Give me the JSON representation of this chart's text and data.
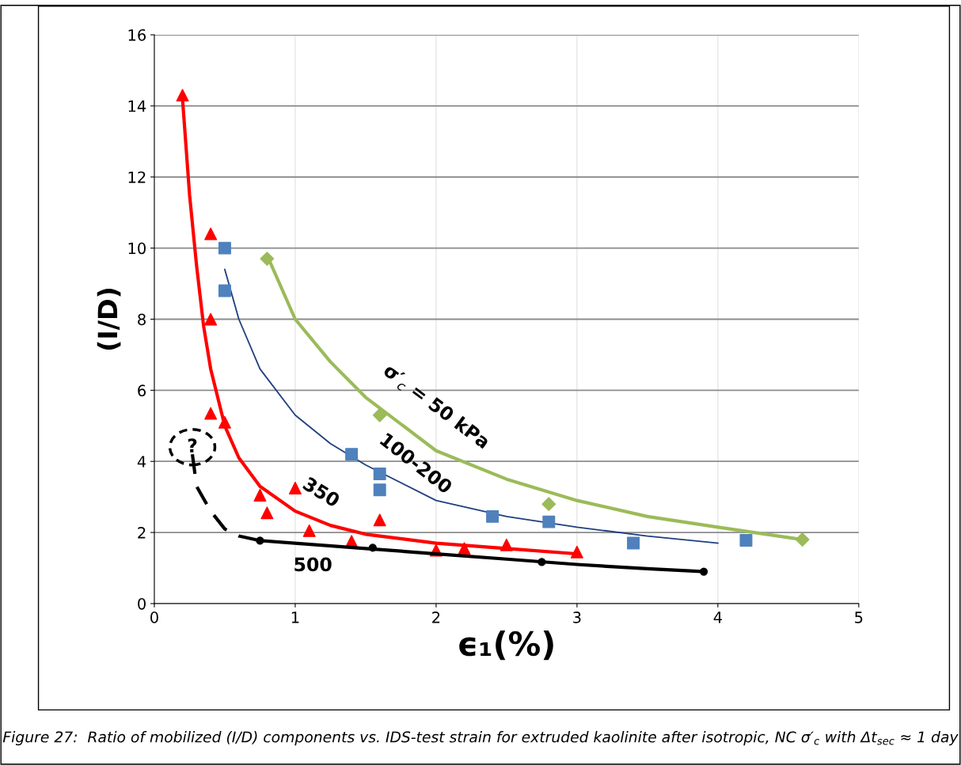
{
  "chart_data": {
    "type": "scatter",
    "xlabel": "ϵ₁(%)",
    "ylabel": "(I/D)",
    "xlim": [
      0,
      5
    ],
    "ylim": [
      0,
      16
    ],
    "xticks": [
      0,
      1,
      2,
      3,
      4,
      5
    ],
    "yticks": [
      0,
      2,
      4,
      6,
      8,
      10,
      12,
      14,
      16
    ],
    "grid": true,
    "legend": false,
    "series": [
      {
        "type": "line",
        "color": "#ff0000",
        "marker": "none",
        "line_style": "solid",
        "x": [
          0.2,
          0.25,
          0.3,
          0.35,
          0.4,
          0.5,
          0.6,
          0.75,
          1.0,
          1.25,
          1.5,
          2.0,
          2.5,
          3.0
        ],
        "values": [
          14.2,
          11.5,
          9.5,
          7.8,
          6.6,
          5.0,
          4.1,
          3.3,
          2.6,
          2.2,
          1.95,
          1.7,
          1.55,
          1.4
        ]
      },
      {
        "type": "line",
        "color": "#1f3f7f",
        "marker": "none",
        "line_style": "solid",
        "x": [
          0.5,
          0.6,
          0.75,
          1.0,
          1.25,
          1.5,
          2.0,
          2.5,
          3.0,
          3.5,
          4.0
        ],
        "values": [
          9.4,
          8.0,
          6.6,
          5.3,
          4.5,
          3.9,
          2.9,
          2.45,
          2.15,
          1.9,
          1.7
        ]
      },
      {
        "type": "line",
        "color": "#9bbb59",
        "marker": "none",
        "line_style": "solid",
        "x": [
          0.8,
          1.0,
          1.25,
          1.5,
          2.0,
          2.5,
          3.0,
          3.5,
          4.0,
          4.6
        ],
        "values": [
          9.8,
          8.0,
          6.8,
          5.8,
          4.3,
          3.5,
          2.9,
          2.45,
          2.15,
          1.8
        ]
      },
      {
        "type": "line",
        "color": "#000000",
        "marker": "none",
        "line_style": "solid",
        "x": [
          0.75,
          1.5,
          2.0,
          2.5,
          3.0,
          3.5,
          3.9
        ],
        "values": [
          1.77,
          1.55,
          1.4,
          1.25,
          1.1,
          0.98,
          0.9
        ]
      },
      {
        "type": "line",
        "color": "#000000",
        "marker": "none",
        "line_style": "dashed",
        "x": [
          0.27,
          0.3,
          0.4,
          0.5,
          0.6,
          0.75
        ],
        "values": [
          4.2,
          3.3,
          2.6,
          2.1,
          1.9,
          1.77
        ]
      },
      {
        "color": "#ff0000",
        "marker": "triangle",
        "x": [
          0.2,
          0.4,
          0.4,
          0.4,
          0.5,
          0.75,
          0.8,
          1.0,
          1.1,
          1.4,
          1.6,
          2.0,
          2.2,
          2.5,
          3.0
        ],
        "values": [
          14.3,
          10.4,
          8.0,
          5.35,
          5.1,
          3.05,
          2.55,
          3.25,
          2.05,
          1.75,
          2.35,
          1.5,
          1.55,
          1.65,
          1.45
        ]
      },
      {
        "color": "#4f81bd",
        "marker": "square",
        "x": [
          0.5,
          0.5,
          1.4,
          1.6,
          1.6,
          2.4,
          2.8,
          3.4,
          4.2
        ],
        "values": [
          10.0,
          8.8,
          4.2,
          3.65,
          3.2,
          2.45,
          2.3,
          1.7,
          1.78
        ]
      },
      {
        "color": "#9bbb59",
        "marker": "diamond",
        "x": [
          0.8,
          1.6,
          2.8,
          4.6
        ],
        "values": [
          9.7,
          5.3,
          2.8,
          1.8
        ]
      },
      {
        "color": "#000000",
        "marker": "circle",
        "x": [
          0.75,
          1.55,
          2.75,
          3.9
        ],
        "values": [
          1.77,
          1.57,
          1.17,
          0.9
        ]
      }
    ],
    "annotations": [
      "σ′$_{c}$ = 50 kPa",
      "100-200",
      "350",
      "500",
      "?",
      "Figure 27:  Ratio of mobilized (I/D) components vs. IDS-test strain for extruded kaolinite after isotropic, NC σ′$_{c}$ with Δt$_{sec}$ ≈ 1 day"
    ]
  }
}
